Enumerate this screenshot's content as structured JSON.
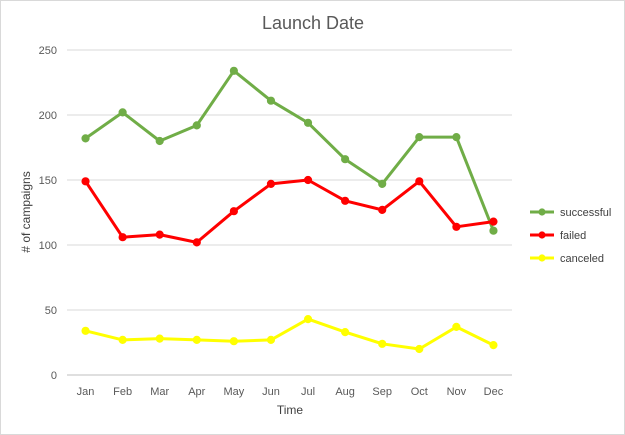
{
  "chart_data": {
    "type": "line",
    "title": "Launch Date",
    "xlabel": "Time",
    "ylabel": "# of campaigns",
    "categories": [
      "Jan",
      "Feb",
      "Mar",
      "Apr",
      "May",
      "Jun",
      "Jul",
      "Aug",
      "Sep",
      "Oct",
      "Nov",
      "Dec"
    ],
    "ylim": [
      0,
      250
    ],
    "yticks": [
      0,
      50,
      100,
      150,
      200,
      250
    ],
    "grid": true,
    "legend_position": "right",
    "series": [
      {
        "name": "successful",
        "color": "#70AD47",
        "values": [
          182,
          202,
          180,
          192,
          234,
          211,
          194,
          166,
          147,
          183,
          183,
          111
        ]
      },
      {
        "name": "failed",
        "color": "#FF0000",
        "values": [
          149,
          106,
          108,
          102,
          126,
          147,
          150,
          134,
          127,
          149,
          114,
          118
        ]
      },
      {
        "name": "canceled",
        "color": "#FFFF00",
        "values": [
          34,
          27,
          28,
          27,
          26,
          27,
          43,
          33,
          24,
          20,
          37,
          23
        ]
      }
    ]
  }
}
